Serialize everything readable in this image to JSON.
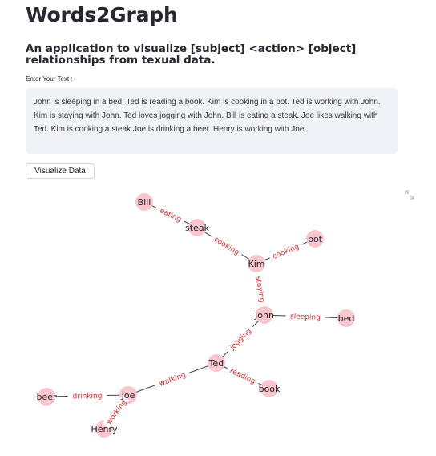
{
  "app": {
    "title": "Words2Graph",
    "subtitle": "An application to visualize [subject] <action> [object] relationships from texual data."
  },
  "input": {
    "label": "Enter Your Text :",
    "value": "John is sleeping in a bed. Ted is reading a book. Kim is cooking in a pot. Ted is working with John. Kim is staying with John. Ted loves jogging with John. Bill is eating a steak. Joe likes walking with Ted. Kim is cooking a steak.Joe is drinking a beer. Henry is working with Joe."
  },
  "button": {
    "label": "Visualize Data"
  },
  "icons": {
    "fullscreen": "expand-icon"
  },
  "graph": {
    "node_color": "#f9c5ce",
    "edge_label_color": "#e8252a",
    "nodes": [
      {
        "id": "Bill"
      },
      {
        "id": "steak"
      },
      {
        "id": "pot"
      },
      {
        "id": "Kim"
      },
      {
        "id": "John"
      },
      {
        "id": "bed"
      },
      {
        "id": "Ted"
      },
      {
        "id": "book"
      },
      {
        "id": "Joe"
      },
      {
        "id": "beer"
      },
      {
        "id": "Henry"
      }
    ],
    "edges": [
      {
        "source": "Bill",
        "target": "steak",
        "label": "eating"
      },
      {
        "source": "steak",
        "target": "Kim",
        "label": "cooking"
      },
      {
        "source": "Kim",
        "target": "pot",
        "label": "cooking"
      },
      {
        "source": "Kim",
        "target": "John",
        "label": "staying"
      },
      {
        "source": "John",
        "target": "bed",
        "label": "sleeping"
      },
      {
        "source": "Ted",
        "target": "John",
        "label": "jogging"
      },
      {
        "source": "Ted",
        "target": "book",
        "label": "reading"
      },
      {
        "source": "Joe",
        "target": "Ted",
        "label": "walking"
      },
      {
        "source": "beer",
        "target": "Joe",
        "label": "drinking"
      },
      {
        "source": "Henry",
        "target": "Joe",
        "label": "working"
      }
    ]
  }
}
